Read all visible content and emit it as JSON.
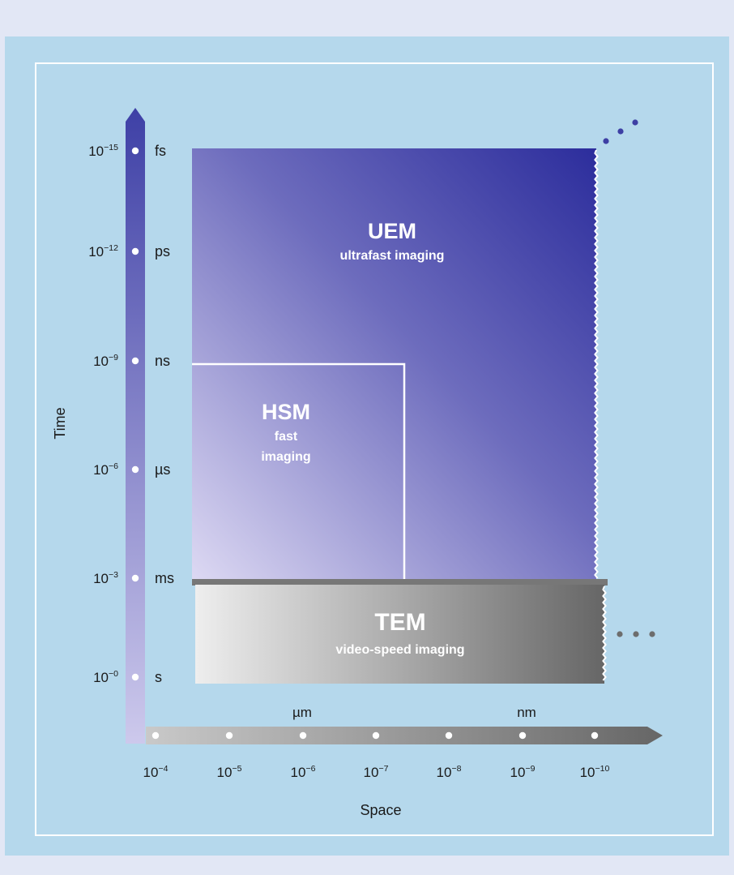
{
  "colors": {
    "page_background": "#e2e7f5",
    "panel_background": "#b5d8ec",
    "panel_border": "#ffffff",
    "time_axis_top": "#3e40a6",
    "time_axis_bottom": "#cdc9ec",
    "uem_dark": "#2f30a0",
    "uem_light": "#d9d6f2",
    "tem_light": "#ececec",
    "tem_dark": "#6a6a6a",
    "text": "#1a1a1a",
    "region_text": "#ffffff"
  },
  "axes": {
    "time": {
      "label": "Time",
      "ticks": [
        {
          "power": "10",
          "exp": "−15",
          "unit": "fs"
        },
        {
          "power": "10",
          "exp": "−12",
          "unit": "ps"
        },
        {
          "power": "10",
          "exp": "−9",
          "unit": "ns"
        },
        {
          "power": "10",
          "exp": "−6",
          "unit": "µs"
        },
        {
          "power": "10",
          "exp": "−3",
          "unit": "ms"
        },
        {
          "power": "10",
          "exp": "−0",
          "unit": "s"
        }
      ]
    },
    "space": {
      "label": "Space",
      "unit_labels": [
        "µm",
        "nm"
      ],
      "ticks": [
        {
          "power": "10",
          "exp": "−4"
        },
        {
          "power": "10",
          "exp": "−5"
        },
        {
          "power": "10",
          "exp": "−6"
        },
        {
          "power": "10",
          "exp": "−7"
        },
        {
          "power": "10",
          "exp": "−8"
        },
        {
          "power": "10",
          "exp": "−9"
        },
        {
          "power": "10",
          "exp": "−10"
        }
      ]
    }
  },
  "regions": {
    "uem": {
      "title": "UEM",
      "subtitle": "ultrafast imaging"
    },
    "hsm": {
      "title": "HSM",
      "subtitle_line1": "fast",
      "subtitle_line2": "imaging"
    },
    "tem": {
      "title": "TEM",
      "subtitle": "video-speed imaging"
    }
  }
}
